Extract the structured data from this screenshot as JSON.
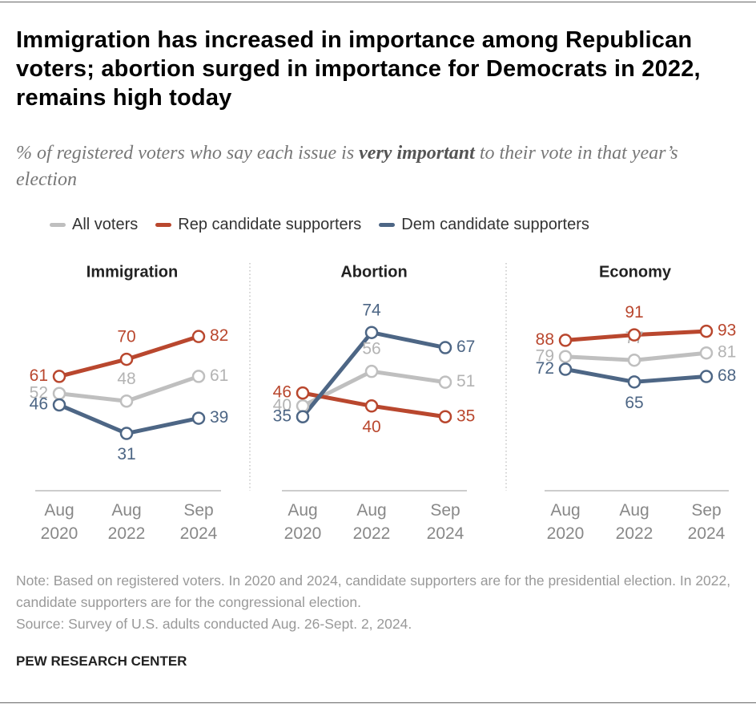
{
  "title": "Immigration has increased in importance among Republican voters; abortion surged in importance for Democrats in 2022, remains high today",
  "subtitle_before": "% of registered voters who say each issue is ",
  "subtitle_emphasis": "very important",
  "subtitle_after": " to their vote in that year’s election",
  "note": "Note: Based on registered voters. In 2020 and 2024, candidate supporters are for the presidential election. In 2022, candidate supporters are for the congressional election.",
  "source": "Source: Survey of U.S. adults conducted Aug. 26-Sept. 2, 2024.",
  "brand": "PEW RESEARCH CENTER",
  "chart_data": [
    {
      "type": "line",
      "title": "Immigration",
      "categories": [
        "Aug 2020",
        "Aug 2022",
        "Sep 2024"
      ],
      "ylim": [
        0,
        100
      ],
      "series": [
        {
          "name": "All voters",
          "color": "#bfbfbf",
          "label_color": "#b3b3b3",
          "values": [
            52,
            48,
            61
          ]
        },
        {
          "name": "Rep candidate supporters",
          "color": "#b9472e",
          "label_color": "#b9472e",
          "values": [
            61,
            70,
            82
          ]
        },
        {
          "name": "Dem candidate supporters",
          "color": "#4d6685",
          "label_color": "#4d6685",
          "values": [
            46,
            31,
            39
          ]
        }
      ]
    },
    {
      "type": "line",
      "title": "Abortion",
      "categories": [
        "Aug 2020",
        "Aug 2022",
        "Sep 2024"
      ],
      "ylim": [
        0,
        88
      ],
      "series": [
        {
          "name": "All voters",
          "color": "#bfbfbf",
          "label_color": "#b3b3b3",
          "values": [
            40,
            56,
            51
          ]
        },
        {
          "name": "Rep candidate supporters",
          "color": "#b9472e",
          "label_color": "#b9472e",
          "values": [
            46,
            40,
            35
          ]
        },
        {
          "name": "Dem candidate supporters",
          "color": "#4d6685",
          "label_color": "#4d6685",
          "values": [
            35,
            74,
            67
          ]
        }
      ]
    },
    {
      "type": "line",
      "title": "Economy",
      "categories": [
        "Aug 2020",
        "Aug 2022",
        "Sep 2024"
      ],
      "ylim": [
        4,
        109
      ],
      "series": [
        {
          "name": "All voters",
          "color": "#bfbfbf",
          "label_color": "#b3b3b3",
          "values": [
            79,
            77,
            81
          ]
        },
        {
          "name": "Rep candidate supporters",
          "color": "#b9472e",
          "label_color": "#b9472e",
          "values": [
            88,
            91,
            93
          ]
        },
        {
          "name": "Dem candidate supporters",
          "color": "#4d6685",
          "label_color": "#4d6685",
          "values": [
            72,
            65,
            68
          ]
        }
      ]
    }
  ]
}
